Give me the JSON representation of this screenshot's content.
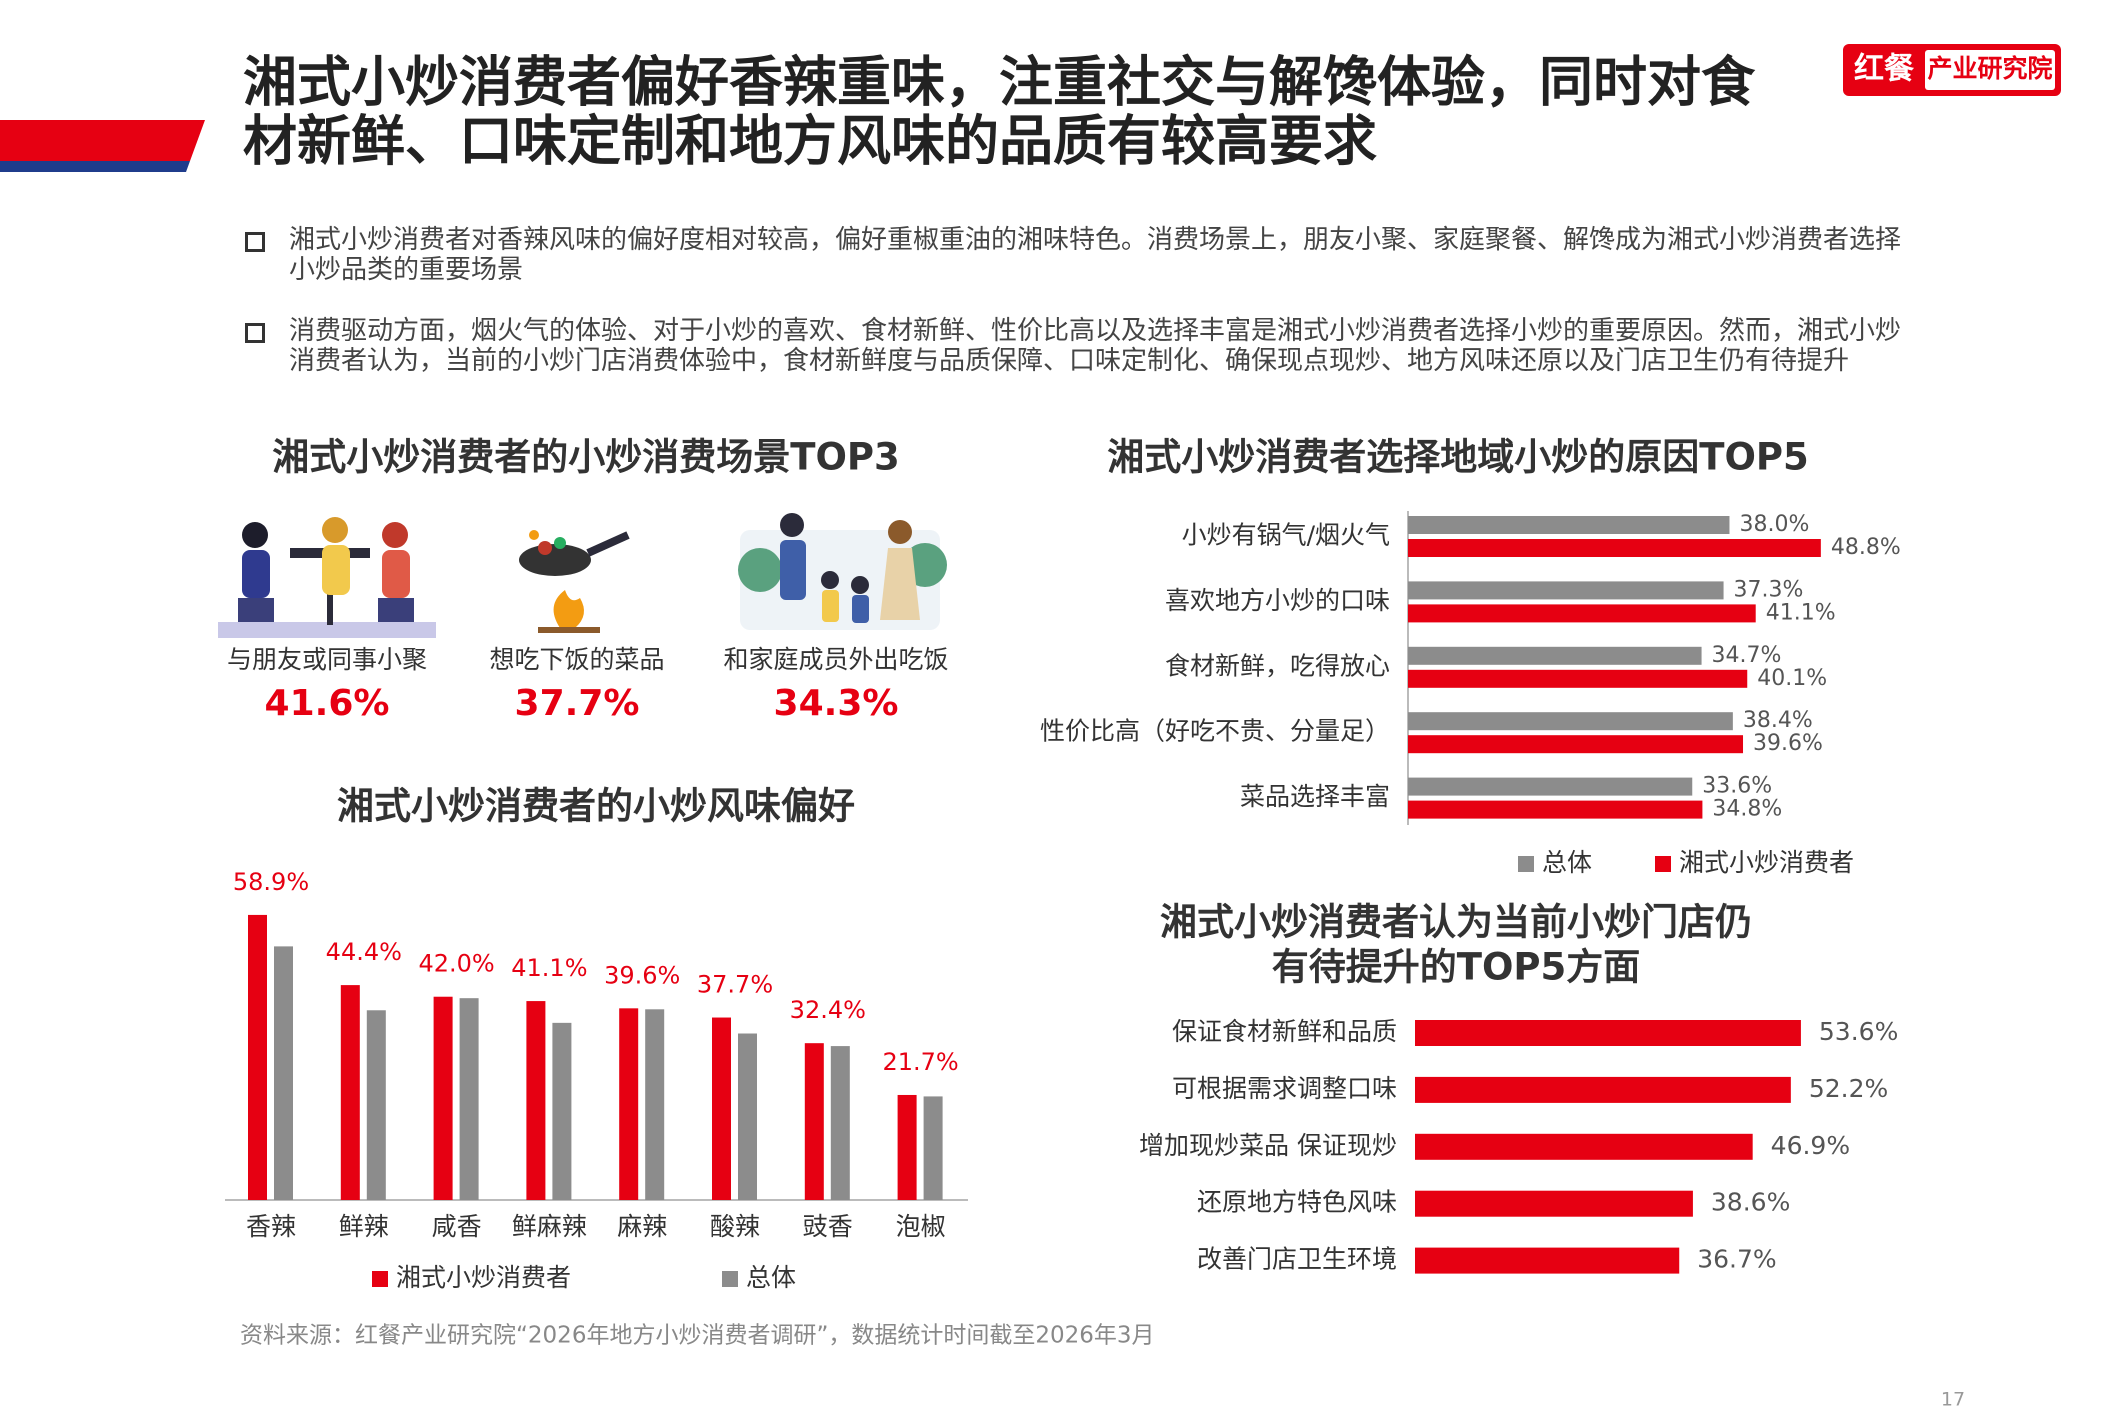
{
  "header": {
    "title": [
      "湘式小炒消费者偏好香辣重味，注重社交与解馋体验，同时对食",
      "材新鲜、口味定制和地方风味的品质有较高要求"
    ],
    "logo": {
      "brand": "红餐",
      "name": "产业研究院"
    }
  },
  "bullets": [
    "湘式小炒消费者对香辣风味的偏好度相对较高，偏好重椒重油的湘味特色。消费场景上，朋友小聚、家庭聚餐、解馋成为湘式小炒消费者选择小炒品类的重要场景",
    "消费驱动方面，烟火气的体验、对于小炒的喜欢、食材新鲜、性价比高以及选择丰富是湘式小炒消费者选择小炒的重要原因。然而，湘式小炒消费者认为，当前的小炒门店消费体验中，食材新鲜度与品质保障、口味定制化、确保现点现炒、地方风味还原以及门店卫生仍有待提升"
  ],
  "scenes": {
    "title": "湘式小炒消费者的小炒消费场景TOP3",
    "items": [
      {
        "label": "与朋友或同事小聚",
        "share": "41.6%"
      },
      {
        "label": "想吃下饭的菜品",
        "share": "37.7%"
      },
      {
        "label": "和家庭成员外出吃饭",
        "share": "34.3%"
      }
    ]
  },
  "chart_data": [
    {
      "type": "bar",
      "title": "湘式小炒消费者的小炒风味偏好",
      "categories": [
        "香辣",
        "鲜辣",
        "咸香",
        "鲜麻辣",
        "麻辣",
        "酸辣",
        "豉香",
        "泡椒"
      ],
      "series": [
        {
          "name": "湘式小炒消费者",
          "color": "#e60012",
          "values": [
            58.9,
            44.4,
            42.0,
            41.1,
            39.6,
            37.7,
            32.4,
            21.7
          ],
          "value_labels": [
            "58.9%",
            "44.4%",
            "42.0%",
            "41.1%",
            "39.6%",
            "37.7%",
            "32.4%",
            "21.7%"
          ]
        },
        {
          "name": "总体",
          "color": "#8c8c8c",
          "values": [
            52.4,
            39.2,
            41.7,
            36.6,
            39.4,
            34.4,
            31.8,
            21.4
          ]
        }
      ]
    },
    {
      "type": "barh",
      "title": "湘式小炒消费者选择地域小炒的原因TOP5",
      "categories": [
        "小炒有锅气/烟火气",
        "喜欢地方小炒的口味",
        "食材新鲜，吃得放心",
        "性价比高（好吃不贵、分量足）",
        "菜品选择丰富"
      ],
      "series": [
        {
          "name": "总体",
          "color": "#8c8c8c",
          "values": [
            38.0,
            37.3,
            34.7,
            38.4,
            33.6
          ],
          "value_labels": [
            "38.0%",
            "37.3%",
            "34.7%",
            "38.4%",
            "33.6%"
          ]
        },
        {
          "name": "湘式小炒消费者",
          "color": "#e60012",
          "values": [
            48.8,
            41.1,
            40.1,
            39.6,
            34.8
          ],
          "value_labels": [
            "48.8%",
            "41.1%",
            "40.1%",
            "39.6%",
            "34.8%"
          ]
        }
      ]
    },
    {
      "type": "barh",
      "title": [
        "湘式小炒消费者认为当前小炒门店仍",
        "有待提升的TOP5方面"
      ],
      "categories": [
        "保证食材新鲜和品质",
        "可根据需求调整口味",
        "增加现炒菜品 保证现炒",
        "还原地方特色风味",
        "改善门店卫生环境"
      ],
      "values": [
        53.6,
        52.2,
        46.9,
        38.6,
        36.7
      ],
      "value_labels": [
        "53.6%",
        "52.2%",
        "46.9%",
        "38.6%",
        "36.7%"
      ],
      "color": "#e60012"
    }
  ],
  "footer": {
    "source": "资料来源：红餐产业研究院“2026年地方小炒消费者调研”，数据统计时间截至2026年3月",
    "page": "17"
  }
}
